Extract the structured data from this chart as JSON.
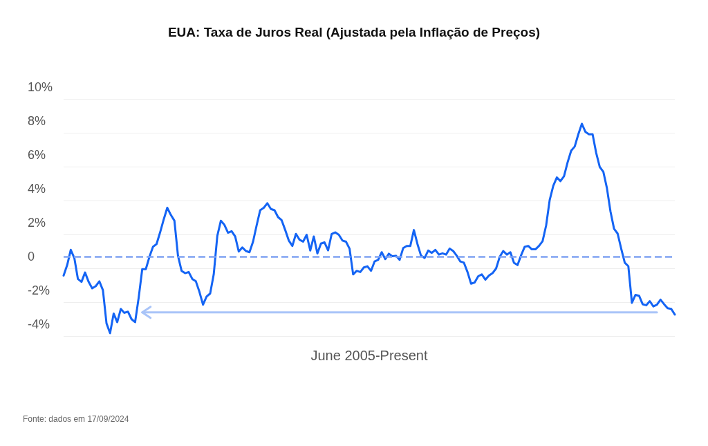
{
  "chart_data": {
    "type": "line",
    "title": "EUA: Taxa de Juros Real (Ajustada pela Inflação de Preços)",
    "xlabel": "June 2005-Present",
    "annotations": [
      "Fonte: dados em 17/09/2024"
    ],
    "categories": [
      null,
      null,
      null,
      null,
      null,
      null,
      null,
      null,
      null,
      null,
      null,
      null,
      null,
      null,
      null,
      null,
      null,
      null,
      null,
      null,
      null,
      null,
      null,
      null,
      null,
      null,
      null,
      null,
      null,
      null,
      null,
      null,
      null,
      null,
      null,
      null,
      null,
      null,
      null,
      null,
      null,
      null,
      null,
      null,
      null,
      null,
      null,
      null,
      null,
      null,
      null,
      null,
      null,
      null,
      null,
      null,
      null,
      null,
      null,
      null,
      null,
      null,
      null,
      null,
      null,
      null,
      null,
      null,
      null,
      null,
      null,
      null,
      null,
      null,
      null,
      null,
      null,
      null,
      null,
      null,
      null,
      null,
      null,
      null,
      null,
      null,
      null,
      null,
      null,
      null,
      null,
      null,
      null,
      null,
      null,
      null,
      null,
      null,
      null,
      null,
      null,
      null,
      null,
      null,
      null,
      null,
      null,
      null,
      null,
      null,
      null,
      null,
      null,
      null,
      null,
      null,
      null,
      null,
      null,
      null,
      null,
      null,
      null,
      null,
      null,
      null,
      null,
      null,
      null,
      null,
      null,
      null,
      null,
      null,
      null,
      null,
      null,
      null,
      null,
      null,
      null,
      null,
      null,
      null,
      null,
      null,
      null,
      null,
      null,
      null,
      null,
      null,
      null,
      null,
      null,
      null,
      null,
      null,
      null,
      null,
      null,
      null,
      null,
      null,
      null,
      null,
      null,
      null,
      null,
      null,
      null,
      null
    ],
    "series": [
      {
        "color": "#1464f4",
        "values": [
          -0.43,
          0.19,
          1.09,
          0.61,
          -0.63,
          -0.8,
          -0.25,
          -0.8,
          -1.18,
          -1.05,
          -0.77,
          -1.29,
          -3.25,
          -3.83,
          -2.67,
          -3.18,
          -2.4,
          -2.63,
          -2.56,
          -3.0,
          -3.18,
          -1.74,
          -0.05,
          -0.05,
          0.67,
          1.27,
          1.43,
          2.12,
          2.88,
          3.57,
          3.15,
          2.81,
          0.74,
          -0.15,
          -0.29,
          -0.22,
          -0.63,
          -0.77,
          -1.39,
          -2.15,
          -1.67,
          -1.49,
          -0.36,
          1.91,
          2.81,
          2.56,
          2.1,
          2.19,
          1.88,
          0.99,
          1.23,
          1.02,
          0.95,
          1.57,
          2.53,
          3.43,
          3.57,
          3.84,
          3.5,
          3.43,
          3.02,
          2.84,
          2.26,
          1.64,
          1.32,
          2.03,
          1.69,
          1.57,
          1.98,
          1.05,
          1.88,
          0.88,
          1.46,
          1.53,
          1.06,
          2.03,
          2.12,
          1.98,
          1.64,
          1.57,
          1.16,
          -0.36,
          -0.15,
          -0.22,
          0.05,
          0.12,
          -0.15,
          0.4,
          0.5,
          0.95,
          0.54,
          0.86,
          0.71,
          0.74,
          0.5,
          1.19,
          1.32,
          1.32,
          2.26,
          1.43,
          0.74,
          0.61,
          1.05,
          0.91,
          1.09,
          0.81,
          0.88,
          0.81,
          1.16,
          1.02,
          0.74,
          0.4,
          0.33,
          -0.22,
          -0.91,
          -0.84,
          -0.47,
          -0.36,
          -0.67,
          -0.43,
          -0.29,
          -0.01,
          0.67,
          1.02,
          0.81,
          0.95,
          0.33,
          0.19,
          0.77,
          1.27,
          1.32,
          1.12,
          1.12,
          1.32,
          1.6,
          2.53,
          4.04,
          4.87,
          5.36,
          5.15,
          5.43,
          6.25,
          6.94,
          7.19,
          7.91,
          8.53,
          8.05,
          7.91,
          7.91,
          6.81,
          5.98,
          5.7,
          4.74,
          3.36,
          2.33,
          2.05,
          1.16,
          0.33,
          0.12,
          -2.04,
          -1.57,
          -1.62,
          -2.12,
          -2.18,
          -1.94,
          -2.25,
          -2.15,
          -1.85,
          -2.12,
          -2.36,
          -2.4,
          -2.73
        ]
      },
      {
        "color": "#a9c4f8",
        "values": [
          null,
          null,
          null,
          null,
          null,
          null,
          null,
          null,
          null,
          null,
          null,
          null,
          null,
          null,
          null,
          null,
          null,
          null,
          null,
          null,
          null,
          null,
          -2.6,
          -2.6,
          -2.6,
          -2.6,
          -2.6,
          -2.6,
          -2.6,
          -2.6,
          -2.6,
          -2.6,
          -2.6,
          -2.6,
          -2.6,
          -2.6,
          -2.6,
          -2.6,
          -2.6,
          -2.6,
          -2.6,
          -2.6,
          -2.6,
          -2.6,
          -2.6,
          -2.6,
          -2.6,
          -2.6,
          -2.6,
          -2.6,
          -2.6,
          -2.6,
          -2.6,
          -2.6,
          -2.6,
          -2.6,
          -2.6,
          -2.6,
          -2.6,
          -2.6,
          -2.6,
          -2.6,
          -2.6,
          -2.6,
          -2.6,
          -2.6,
          -2.6,
          -2.6,
          -2.6,
          -2.6,
          -2.6,
          -2.6,
          -2.6,
          -2.6,
          -2.6,
          -2.6,
          -2.6,
          -2.6,
          -2.6,
          -2.6,
          -2.6,
          -2.6,
          -2.6,
          -2.6,
          -2.6,
          -2.6,
          -2.6,
          -2.6,
          -2.6,
          -2.6,
          -2.6,
          -2.6,
          -2.6,
          -2.6,
          -2.6,
          -2.6,
          -2.6,
          -2.6,
          -2.6,
          -2.6,
          -2.6,
          -2.6,
          -2.6,
          -2.6,
          -2.6,
          -2.6,
          -2.6,
          -2.6,
          -2.6,
          -2.6,
          -2.6,
          -2.6,
          -2.6,
          -2.6,
          -2.6,
          -2.6,
          -2.6,
          -2.6,
          -2.6,
          -2.6,
          -2.6,
          -2.6,
          -2.6,
          -2.6,
          -2.6,
          -2.6,
          -2.6,
          -2.6,
          -2.6,
          -2.6,
          -2.6,
          -2.6,
          -2.6,
          -2.6,
          -2.6,
          -2.6,
          -2.6,
          -2.6,
          -2.6,
          -2.6,
          -2.6,
          -2.6,
          -2.6,
          -2.6,
          -2.6,
          -2.6,
          -2.6,
          -2.6,
          -2.6,
          -2.6,
          -2.6,
          -2.6,
          -2.6,
          -2.6,
          -2.6,
          -2.6,
          -2.6,
          -2.6,
          -2.6,
          -2.6,
          -2.6,
          -2.6,
          -2.6,
          -2.6,
          -2.6,
          -2.6,
          -2.6,
          null,
          null,
          null,
          null,
          null
        ]
      }
    ],
    "ylim": [
      -4,
      10
    ],
    "yticks": [
      {
        "value": -4,
        "label": "-4%"
      },
      {
        "value": -2,
        "label": "-2%"
      },
      0,
      {
        "value": 2,
        "label": "2%"
      },
      {
        "value": 4,
        "label": "4%"
      },
      {
        "value": 6,
        "label": "6%"
      },
      {
        "value": 8,
        "label": "8%"
      },
      {
        "value": 10,
        "label": "10%"
      }
    ],
    "ref_lines": [
      {
        "axis": "y",
        "value": 0.7,
        "color": "#7fa3f2",
        "line_style": "dashed"
      }
    ],
    "grid": "y",
    "line_style": "solid",
    "tick_labels": "y"
  }
}
